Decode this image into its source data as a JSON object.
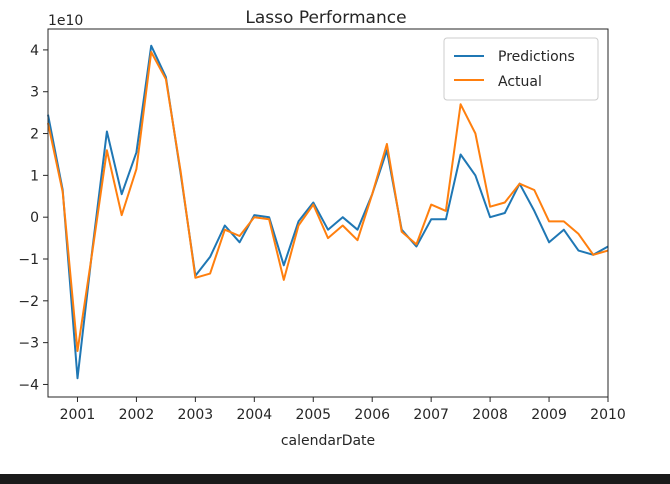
{
  "chart_data": {
    "type": "line",
    "title": "Lasso Performance",
    "xlabel": "calendarDate",
    "ylabel": "",
    "y_offset_label": "1e10",
    "xlim": [
      2000.5,
      2010.0
    ],
    "ylim": [
      -4.3,
      4.5
    ],
    "x_ticks": [
      {
        "value": 2001,
        "label": "2001"
      },
      {
        "value": 2002,
        "label": "2002"
      },
      {
        "value": 2003,
        "label": "2003"
      },
      {
        "value": 2004,
        "label": "2004"
      },
      {
        "value": 2005,
        "label": "2005"
      },
      {
        "value": 2006,
        "label": "2006"
      },
      {
        "value": 2007,
        "label": "2007"
      },
      {
        "value": 2008,
        "label": "2008"
      },
      {
        "value": 2009,
        "label": "2009"
      },
      {
        "value": 2010,
        "label": "2010"
      }
    ],
    "y_ticks": [
      {
        "value": 4,
        "label": "4"
      },
      {
        "value": 3,
        "label": "3"
      },
      {
        "value": 2,
        "label": "2"
      },
      {
        "value": 1,
        "label": "1"
      },
      {
        "value": 0,
        "label": "0"
      },
      {
        "value": -1,
        "label": "−1"
      },
      {
        "value": -2,
        "label": "−2"
      },
      {
        "value": -3,
        "label": "−3"
      },
      {
        "value": -4,
        "label": "−4"
      }
    ],
    "grid": false,
    "legend_position": "top-right",
    "x": [
      2000.5,
      2000.75,
      2001.0,
      2001.25,
      2001.5,
      2001.75,
      2002.0,
      2002.25,
      2002.5,
      2002.75,
      2003.0,
      2003.25,
      2003.5,
      2003.75,
      2004.0,
      2004.25,
      2004.5,
      2004.75,
      2005.0,
      2005.25,
      2005.5,
      2005.75,
      2006.0,
      2006.25,
      2006.5,
      2006.75,
      2007.0,
      2007.25,
      2007.5,
      2007.75,
      2008.0,
      2008.25,
      2008.5,
      2008.75,
      2009.0,
      2009.25,
      2009.5,
      2009.75,
      2010.0
    ],
    "series": [
      {
        "name": "Predictions",
        "color": "#1f77b4",
        "values": [
          2.45,
          0.65,
          -3.85,
          -0.8,
          2.05,
          0.55,
          1.55,
          4.1,
          3.35,
          1.05,
          -1.4,
          -0.95,
          -0.2,
          -0.6,
          0.05,
          0.0,
          -1.15,
          -0.1,
          0.35,
          -0.3,
          0.0,
          -0.3,
          0.55,
          1.6,
          -0.3,
          -0.7,
          -0.05,
          -0.05,
          1.5,
          1.0,
          0.0,
          0.1,
          0.8,
          0.15,
          -0.6,
          -0.3,
          -0.8,
          -0.9,
          -0.7
        ]
      },
      {
        "name": "Actual",
        "color": "#ff7f0e",
        "values": [
          2.25,
          0.6,
          -3.2,
          -0.85,
          1.6,
          0.05,
          1.15,
          3.95,
          3.3,
          1.1,
          -1.45,
          -1.35,
          -0.3,
          -0.45,
          0.0,
          -0.05,
          -1.5,
          -0.2,
          0.3,
          -0.5,
          -0.2,
          -0.55,
          0.55,
          1.75,
          -0.35,
          -0.65,
          0.3,
          0.15,
          2.7,
          2.0,
          0.25,
          0.35,
          0.8,
          0.65,
          -0.1,
          -0.1,
          -0.4,
          -0.9,
          -0.8
        ]
      }
    ]
  }
}
